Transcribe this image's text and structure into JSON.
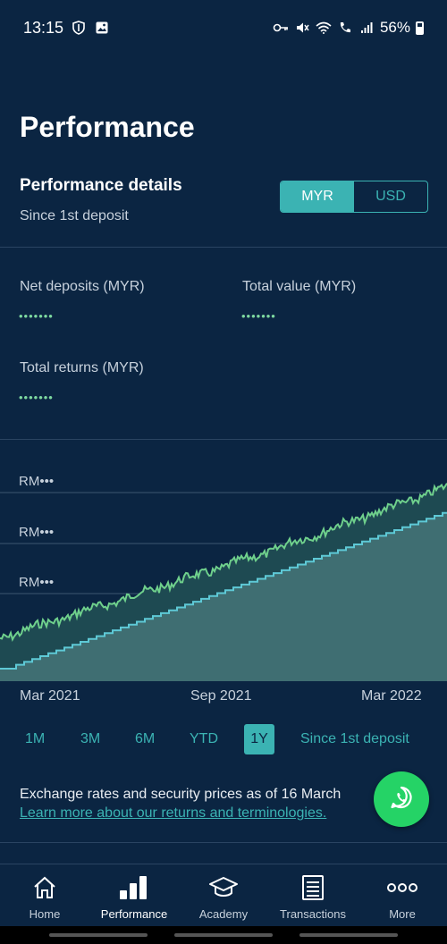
{
  "status_bar": {
    "time": "13:15",
    "battery": "56%",
    "icons": [
      "shield-icon",
      "image-icon",
      "key-icon",
      "mute-icon",
      "wifi-icon",
      "wifi-calling-icon",
      "signal-icon",
      "battery-icon"
    ]
  },
  "page": {
    "title": "Performance",
    "section_title": "Performance details",
    "section_subtitle": "Since 1st deposit"
  },
  "currency_toggle": {
    "options": [
      "MYR",
      "USD"
    ],
    "selected": "MYR"
  },
  "metrics": {
    "net_deposits_label": "Net deposits (MYR)",
    "net_deposits_value": "•••••••",
    "total_value_label": "Total value (MYR)",
    "total_value_value": "•••••••",
    "total_returns_label": "Total returns (MYR)",
    "total_returns_value": "•••••••"
  },
  "chart": {
    "y_labels": [
      "RM•••",
      "RM•••",
      "RM•••"
    ],
    "x_labels": [
      "Mar 2021",
      "Sep 2021",
      "Mar 2022"
    ],
    "colors": {
      "total_value": "#6fd08c",
      "net_deposits": "#5ec9d6",
      "fill_upper": "#1e4a52",
      "fill_lower": "#3f6e72"
    }
  },
  "chart_data": {
    "type": "line",
    "x": [
      "Mar 2021",
      "Sep 2021",
      "Mar 2022"
    ],
    "series": [],
    "ylabel": "",
    "xlabel": ""
  },
  "ranges": {
    "items": [
      "1M",
      "3M",
      "6M",
      "YTD",
      "1Y",
      "Since 1st deposit"
    ],
    "selected": "1Y"
  },
  "footnote": {
    "text": "Exchange rates and security prices as of 16 March",
    "link": "Learn more about our returns and terminologies."
  },
  "fab": {
    "icon": "whatsapp-icon"
  },
  "bottom_nav": {
    "items": [
      {
        "label": "Home",
        "icon": "home-icon"
      },
      {
        "label": "Performance",
        "icon": "bar-chart-icon"
      },
      {
        "label": "Academy",
        "icon": "graduation-cap-icon"
      },
      {
        "label": "Transactions",
        "icon": "document-icon"
      },
      {
        "label": "More",
        "icon": "more-icon"
      }
    ],
    "active": "Performance"
  }
}
